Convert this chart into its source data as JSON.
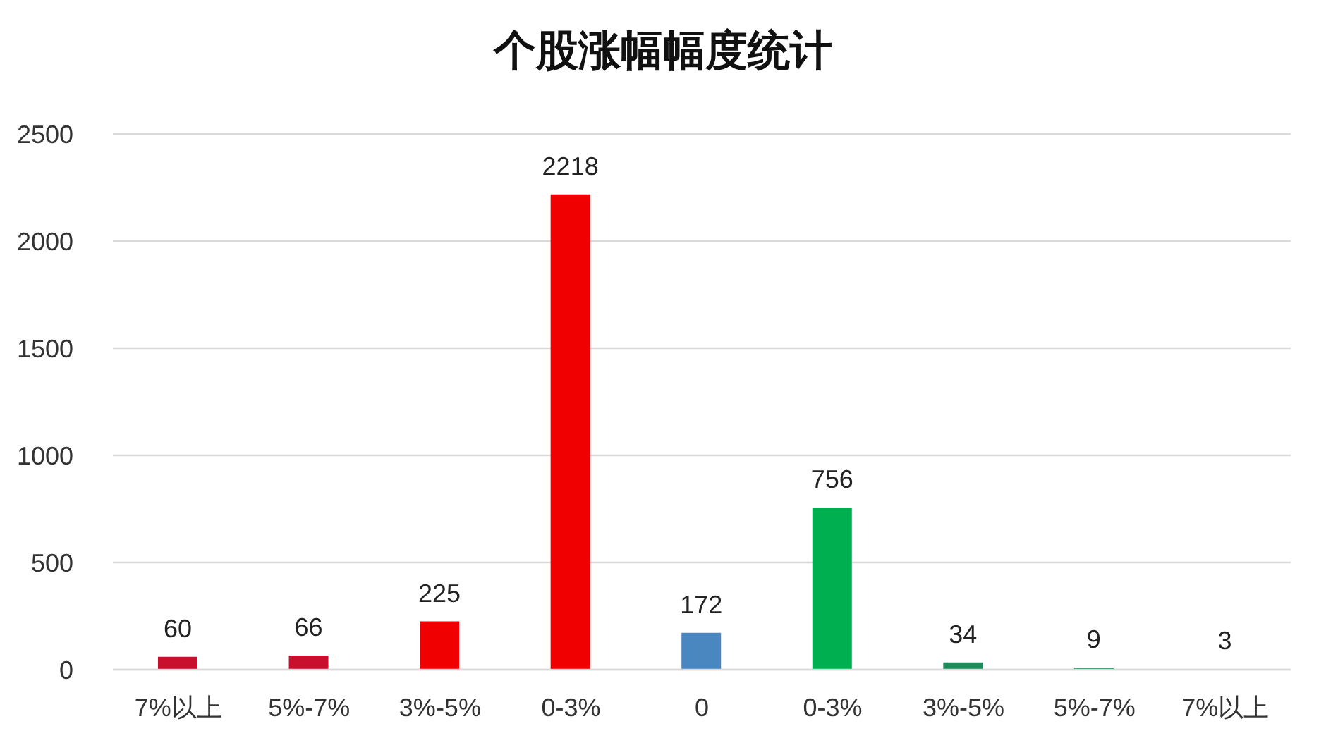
{
  "chart_data": {
    "type": "bar",
    "title": "个股涨幅幅度统计",
    "categories": [
      "7%以上",
      "5%-7%",
      "3%-5%",
      "0-3%",
      "0",
      "0-3%",
      "3%-5%",
      "5%-7%",
      "7%以上"
    ],
    "values": [
      60,
      66,
      225,
      2218,
      172,
      756,
      34,
      9,
      3
    ],
    "colors": [
      "#c8102e",
      "#c8102e",
      "#f00000",
      "#f00000",
      "#4a86c0",
      "#00b050",
      "#1e8c5a",
      "#1e8c5a",
      "#1e8c5a"
    ],
    "ylim": [
      0,
      2500
    ],
    "yticks": [
      0,
      500,
      1000,
      1500,
      2000,
      2500
    ],
    "grid": "y",
    "data_labels": true
  }
}
